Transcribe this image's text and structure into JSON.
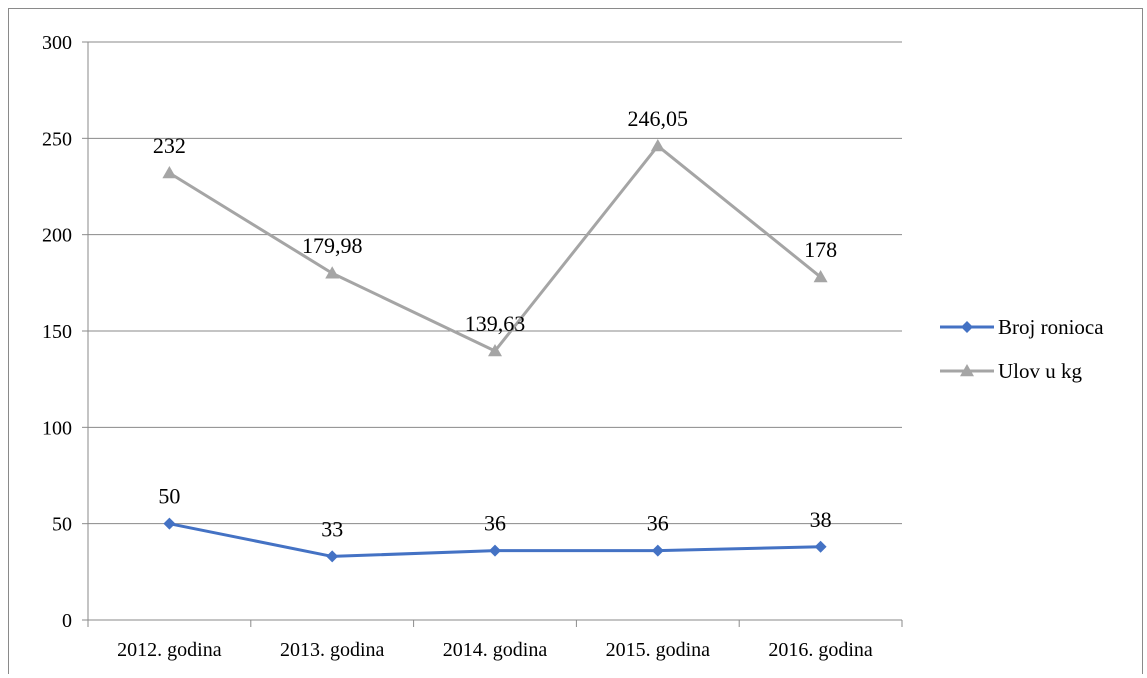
{
  "chart_data": {
    "type": "line",
    "title": "",
    "xlabel": "",
    "ylabel": "",
    "categories": [
      "2012. godina",
      "2013. godina",
      "2014. godina",
      "2015. godina",
      "2016. godina"
    ],
    "ylim": [
      0,
      300
    ],
    "yticks": [
      0,
      50,
      100,
      150,
      200,
      250,
      300
    ],
    "grid": true,
    "legend_position": "right",
    "series": [
      {
        "name": "Broj ronioca",
        "values": [
          50,
          33,
          36,
          36,
          38
        ],
        "labels": [
          "50",
          "33",
          "36",
          "36",
          "38"
        ],
        "color": "#4472C4",
        "marker": "diamond"
      },
      {
        "name": "Ulov u kg",
        "values": [
          232,
          179.98,
          139.63,
          246.05,
          178
        ],
        "labels": [
          "232",
          "179,98",
          "139,63",
          "246,05",
          "178"
        ],
        "color": "#A5A5A5",
        "marker": "triangle"
      }
    ]
  }
}
